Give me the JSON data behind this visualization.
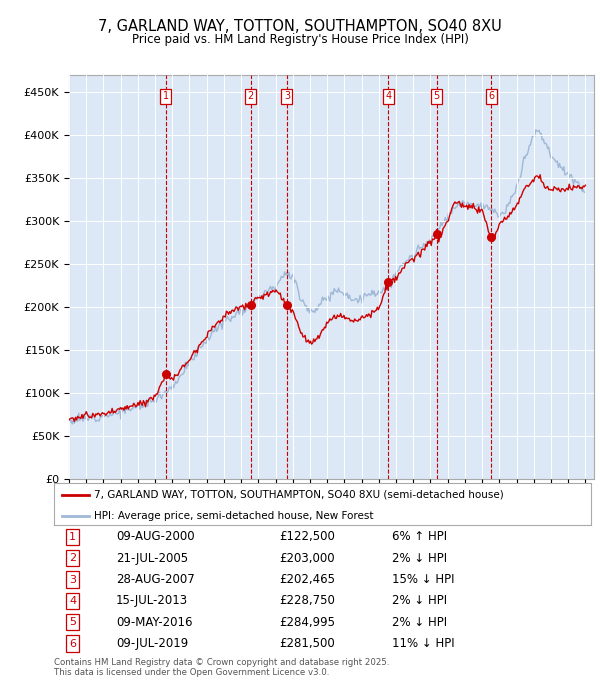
{
  "title": "7, GARLAND WAY, TOTTON, SOUTHAMPTON, SO40 8XU",
  "subtitle": "Price paid vs. HM Land Registry's House Price Index (HPI)",
  "ylim": [
    0,
    470000
  ],
  "yticks": [
    0,
    50000,
    100000,
    150000,
    200000,
    250000,
    300000,
    350000,
    400000,
    450000
  ],
  "ytick_labels": [
    "£0",
    "£50K",
    "£100K",
    "£150K",
    "£200K",
    "£250K",
    "£300K",
    "£350K",
    "£400K",
    "£450K"
  ],
  "legend_property": "7, GARLAND WAY, TOTTON, SOUTHAMPTON, SO40 8XU (semi-detached house)",
  "legend_hpi": "HPI: Average price, semi-detached house, New Forest",
  "transactions": [
    {
      "num": 1,
      "date": "09-AUG-2000",
      "price": 122500,
      "pct": "6%",
      "dir": "↑",
      "year": 2000.61
    },
    {
      "num": 2,
      "date": "21-JUL-2005",
      "price": 203000,
      "pct": "2%",
      "dir": "↓",
      "year": 2005.55
    },
    {
      "num": 3,
      "date": "28-AUG-2007",
      "price": 202465,
      "pct": "15%",
      "dir": "↓",
      "year": 2007.66
    },
    {
      "num": 4,
      "date": "15-JUL-2013",
      "price": 228750,
      "pct": "2%",
      "dir": "↓",
      "year": 2013.54
    },
    {
      "num": 5,
      "date": "09-MAY-2016",
      "price": 284995,
      "pct": "2%",
      "dir": "↓",
      "year": 2016.36
    },
    {
      "num": 6,
      "date": "09-JUL-2019",
      "price": 281500,
      "pct": "11%",
      "dir": "↓",
      "year": 2019.52
    }
  ],
  "footer": "Contains HM Land Registry data © Crown copyright and database right 2025.\nThis data is licensed under the Open Government Licence v3.0.",
  "hpi_color": "#a0b8d8",
  "property_color": "#cc0000",
  "background_color": "#dce8f5",
  "grid_color": "#ffffff",
  "hpi_key_points": [
    [
      1995.0,
      68000
    ],
    [
      1996.0,
      71000
    ],
    [
      1997.0,
      74000
    ],
    [
      1998.0,
      78000
    ],
    [
      1999.0,
      84000
    ],
    [
      2000.0,
      93000
    ],
    [
      2001.0,
      108000
    ],
    [
      2002.0,
      135000
    ],
    [
      2003.0,
      163000
    ],
    [
      2004.0,
      183000
    ],
    [
      2005.0,
      196000
    ],
    [
      2005.5,
      203000
    ],
    [
      2006.0,
      213000
    ],
    [
      2007.0,
      225000
    ],
    [
      2007.5,
      240000
    ],
    [
      2008.0,
      235000
    ],
    [
      2008.5,
      210000
    ],
    [
      2009.0,
      195000
    ],
    [
      2009.5,
      200000
    ],
    [
      2010.0,
      212000
    ],
    [
      2010.5,
      220000
    ],
    [
      2011.0,
      218000
    ],
    [
      2011.5,
      208000
    ],
    [
      2012.0,
      210000
    ],
    [
      2012.5,
      215000
    ],
    [
      2013.0,
      218000
    ],
    [
      2013.5,
      222000
    ],
    [
      2014.0,
      238000
    ],
    [
      2014.5,
      252000
    ],
    [
      2015.0,
      260000
    ],
    [
      2015.5,
      270000
    ],
    [
      2016.0,
      278000
    ],
    [
      2016.5,
      290000
    ],
    [
      2017.0,
      305000
    ],
    [
      2017.5,
      318000
    ],
    [
      2018.0,
      322000
    ],
    [
      2018.5,
      320000
    ],
    [
      2019.0,
      318000
    ],
    [
      2019.5,
      315000
    ],
    [
      2020.0,
      305000
    ],
    [
      2020.5,
      315000
    ],
    [
      2021.0,
      340000
    ],
    [
      2021.5,
      375000
    ],
    [
      2022.0,
      400000
    ],
    [
      2022.3,
      405000
    ],
    [
      2022.7,
      390000
    ],
    [
      2023.0,
      375000
    ],
    [
      2023.5,
      365000
    ],
    [
      2024.0,
      355000
    ],
    [
      2024.5,
      345000
    ],
    [
      2025.0,
      332000
    ]
  ],
  "prop_key_points": [
    [
      1995.0,
      70000
    ],
    [
      1996.0,
      73000
    ],
    [
      1997.0,
      76000
    ],
    [
      1998.0,
      81000
    ],
    [
      1999.0,
      87000
    ],
    [
      2000.0,
      96000
    ],
    [
      2000.61,
      122500
    ],
    [
      2001.0,
      115000
    ],
    [
      2002.0,
      140000
    ],
    [
      2003.0,
      168000
    ],
    [
      2004.0,
      190000
    ],
    [
      2005.0,
      200000
    ],
    [
      2005.55,
      203000
    ],
    [
      2006.0,
      210000
    ],
    [
      2007.0,
      220000
    ],
    [
      2007.66,
      202465
    ],
    [
      2008.0,
      195000
    ],
    [
      2008.5,
      170000
    ],
    [
      2009.0,
      158000
    ],
    [
      2009.5,
      165000
    ],
    [
      2010.0,
      180000
    ],
    [
      2010.5,
      190000
    ],
    [
      2011.0,
      188000
    ],
    [
      2011.5,
      185000
    ],
    [
      2012.0,
      188000
    ],
    [
      2012.5,
      192000
    ],
    [
      2013.0,
      198000
    ],
    [
      2013.54,
      228750
    ],
    [
      2014.0,
      232000
    ],
    [
      2014.5,
      248000
    ],
    [
      2015.0,
      255000
    ],
    [
      2015.5,
      265000
    ],
    [
      2016.0,
      275000
    ],
    [
      2016.36,
      284995
    ],
    [
      2016.5,
      278000
    ],
    [
      2017.0,
      300000
    ],
    [
      2017.3,
      318000
    ],
    [
      2017.5,
      322000
    ],
    [
      2018.0,
      318000
    ],
    [
      2018.5,
      315000
    ],
    [
      2019.0,
      312000
    ],
    [
      2019.52,
      281500
    ],
    [
      2019.7,
      280000
    ],
    [
      2020.0,
      295000
    ],
    [
      2020.5,
      305000
    ],
    [
      2021.0,
      318000
    ],
    [
      2021.5,
      338000
    ],
    [
      2022.0,
      350000
    ],
    [
      2022.3,
      352000
    ],
    [
      2022.7,
      340000
    ],
    [
      2023.0,
      335000
    ],
    [
      2023.3,
      340000
    ],
    [
      2023.5,
      335000
    ],
    [
      2024.0,
      338000
    ],
    [
      2024.5,
      340000
    ],
    [
      2025.0,
      340000
    ]
  ]
}
